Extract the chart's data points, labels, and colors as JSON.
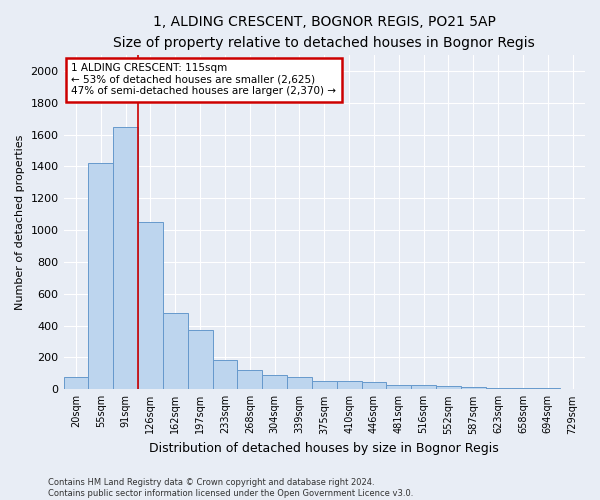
{
  "title1": "1, ALDING CRESCENT, BOGNOR REGIS, PO21 5AP",
  "title2": "Size of property relative to detached houses in Bognor Regis",
  "xlabel": "Distribution of detached houses by size in Bognor Regis",
  "ylabel": "Number of detached properties",
  "categories": [
    "20sqm",
    "55sqm",
    "91sqm",
    "126sqm",
    "162sqm",
    "197sqm",
    "233sqm",
    "268sqm",
    "304sqm",
    "339sqm",
    "375sqm",
    "410sqm",
    "446sqm",
    "481sqm",
    "516sqm",
    "552sqm",
    "587sqm",
    "623sqm",
    "658sqm",
    "694sqm",
    "729sqm"
  ],
  "values": [
    75,
    1420,
    1650,
    1050,
    480,
    370,
    185,
    120,
    90,
    80,
    55,
    50,
    45,
    30,
    25,
    20,
    15,
    10,
    10,
    8,
    5
  ],
  "bar_color": "#bdd5ee",
  "bar_edge_color": "#6699cc",
  "annotation_text": "1 ALDING CRESCENT: 115sqm\n← 53% of detached houses are smaller (2,625)\n47% of semi-detached houses are larger (2,370) →",
  "annotation_box_color": "#ffffff",
  "annotation_box_edgecolor": "#cc0000",
  "vline_color": "#cc0000",
  "vline_x": 2.5,
  "ylim": [
    0,
    2100
  ],
  "yticks": [
    0,
    200,
    400,
    600,
    800,
    1000,
    1200,
    1400,
    1600,
    1800,
    2000
  ],
  "footer1": "Contains HM Land Registry data © Crown copyright and database right 2024.",
  "footer2": "Contains public sector information licensed under the Open Government Licence v3.0.",
  "bg_color": "#e8edf5",
  "plot_bg_color": "#e8edf5",
  "title1_fontsize": 10,
  "title2_fontsize": 8.5,
  "xlabel_fontsize": 9,
  "ylabel_fontsize": 8,
  "tick_fontsize": 7,
  "annotation_fontsize": 7.5,
  "footer_fontsize": 6
}
